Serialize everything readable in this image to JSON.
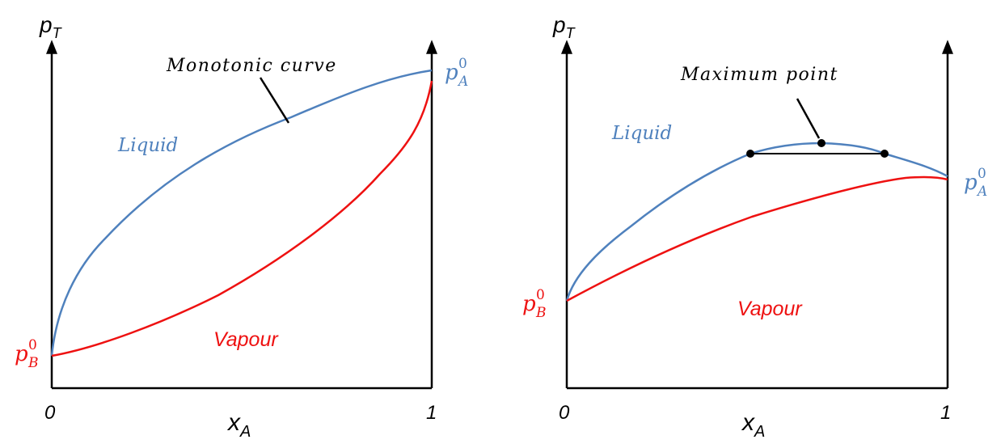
{
  "colors": {
    "liquid": "#4f81bd",
    "vapour": "#ee1111",
    "axis": "#000000"
  },
  "left": {
    "y_axis_label": {
      "main": "p",
      "sub": "T"
    },
    "x_axis_label": {
      "main": "x",
      "sub": "A"
    },
    "tick_0": "0",
    "tick_1": "1",
    "region_liquid": "Liquid",
    "region_vapour": "Vapour",
    "annotation": "Monotonic curve",
    "pA_label": {
      "main": "p",
      "sup": "0",
      "sub": "A"
    },
    "pB_label": {
      "main": "p",
      "sup": "0",
      "sub": "B"
    }
  },
  "right": {
    "y_axis_label": {
      "main": "p",
      "sub": "T"
    },
    "x_axis_label": {
      "main": "x",
      "sub": "A"
    },
    "tick_0": "0",
    "tick_1": "1",
    "region_liquid": "Liquid",
    "region_vapour": "Vapour",
    "annotation": "Maximum point",
    "pA_label": {
      "main": "p",
      "sup": "0",
      "sub": "A"
    },
    "pB_label": {
      "main": "p",
      "sup": "0",
      "sub": "B"
    }
  }
}
